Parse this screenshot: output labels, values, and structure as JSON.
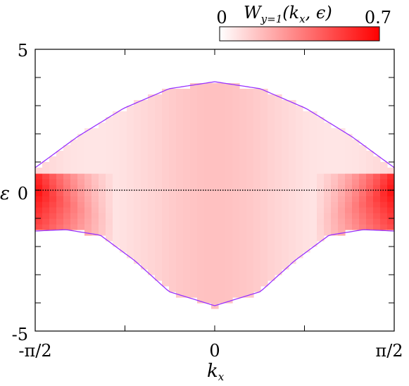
{
  "chart_data": {
    "type": "heatmap",
    "title": "",
    "xlabel": "k",
    "xlabel_sub": "x",
    "ylabel": "ε",
    "xlim": [
      -1.5708,
      1.5708
    ],
    "ylim": [
      -5,
      5
    ],
    "x_ticks": [
      {
        "value": -1.5708,
        "label": "-π/2"
      },
      {
        "value": 0,
        "label": "0"
      },
      {
        "value": 1.5708,
        "label": "π/2"
      }
    ],
    "y_ticks": [
      {
        "value": -5,
        "label": "-5"
      },
      {
        "value": 0,
        "label": "0"
      },
      {
        "value": 5,
        "label": "5"
      }
    ],
    "colorbar": {
      "title_main": "W",
      "title_sub": "y=1",
      "title_args": "(k",
      "title_args_sub": "x",
      "title_args_end": ", ϵ)",
      "min": 0,
      "max": 0.7,
      "min_label": "0",
      "max_label": "0.7",
      "color_low": "#ffffff",
      "color_high": "#ff0000"
    },
    "band_edge_upper": {
      "color": "#9933ff",
      "x": [
        -1.5708,
        -1.2,
        -0.8,
        -0.4,
        0,
        0.4,
        0.8,
        1.2,
        1.5708
      ],
      "y": [
        0.8,
        1.9,
        2.9,
        3.6,
        3.85,
        3.6,
        2.9,
        1.9,
        0.8
      ]
    },
    "band_edge_lower": {
      "color": "#9933ff",
      "x": [
        -1.5708,
        -1.3,
        -1.0,
        -0.7,
        -0.4,
        0,
        0.4,
        0.7,
        1.0,
        1.3,
        1.5708
      ],
      "y": [
        -1.45,
        -1.4,
        -1.6,
        -2.5,
        -3.6,
        -4.1,
        -3.6,
        -2.5,
        -1.6,
        -1.4,
        -1.45
      ]
    },
    "fermi_level": {
      "y": 0,
      "style": "dotted",
      "color": "#000000"
    }
  }
}
